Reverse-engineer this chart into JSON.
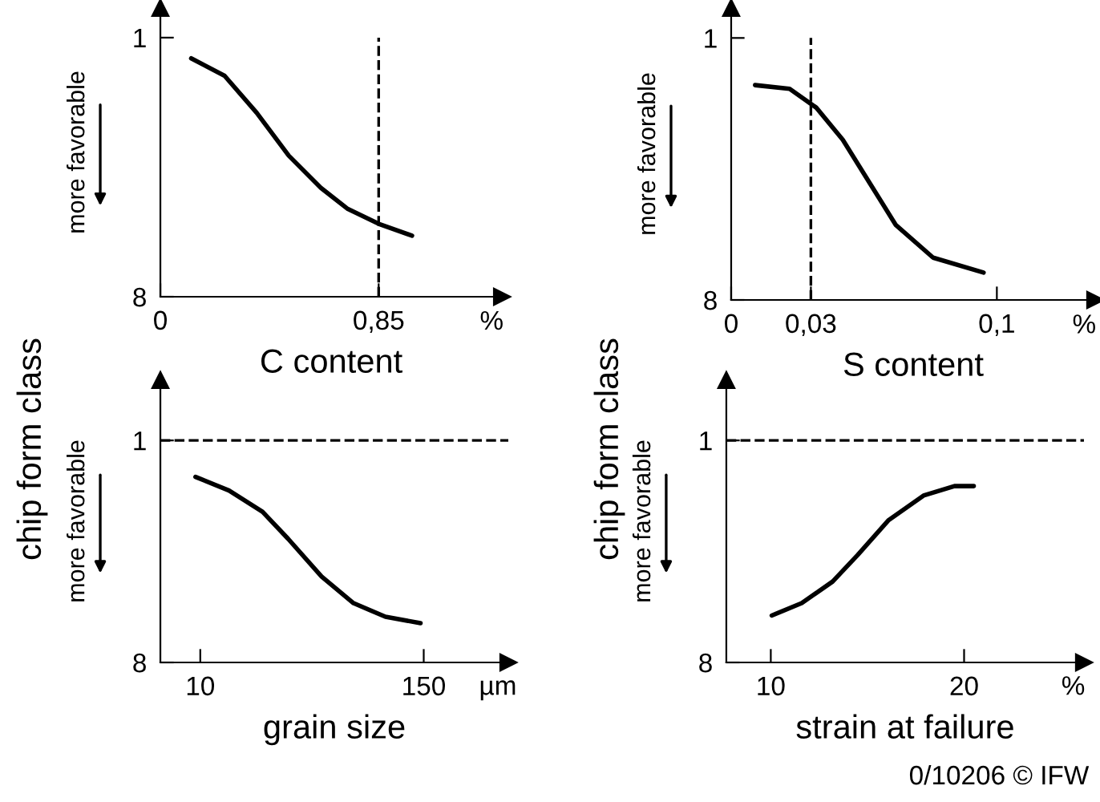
{
  "chart_data": [
    {
      "type": "line",
      "xlabel": "C content",
      "ylabel": "chip form class",
      "xlim": [
        0,
        1.33
      ],
      "ylim": [
        8,
        0.2
      ],
      "xticks": [
        0,
        {
          "value": 0.85,
          "label": "0,85"
        }
      ],
      "yticks": [
        1,
        8
      ],
      "series": [
        {
          "color": "#000000",
          "x": [
            0.12,
            0.25,
            0.375,
            0.5,
            0.625,
            0.73,
            0.85,
            0.98
          ],
          "values": [
            1.56,
            2.03,
            3.03,
            4.19,
            5.06,
            5.63,
            6.03,
            6.35
          ]
        }
      ],
      "ref_lines": [
        {
          "axis": "x",
          "value": 0.85,
          "line_style": "dashed",
          "color": "#000000"
        }
      ],
      "annotations": [
        "%",
        "more favorable"
      ]
    },
    {
      "type": "line",
      "xlabel": "S content",
      "ylabel": "chip form class",
      "xlim": [
        0,
        0.137
      ],
      "ylim": [
        8,
        0.2
      ],
      "xticks": [
        0,
        {
          "value": 0.03,
          "label": "0,03"
        },
        {
          "value": 0.1,
          "label": "0,1"
        }
      ],
      "yticks": [
        1,
        8
      ],
      "series": [
        {
          "color": "#000000",
          "x": [
            0.009,
            0.022,
            0.032,
            0.042,
            0.052,
            0.062,
            0.076,
            0.095
          ],
          "values": [
            2.26,
            2.36,
            2.86,
            3.72,
            4.86,
            6.0,
            6.87,
            7.27
          ]
        }
      ],
      "ref_lines": [
        {
          "axis": "x",
          "value": 0.03,
          "line_style": "dashed",
          "color": "#000000"
        }
      ],
      "annotations": [
        "%",
        "more favorable"
      ]
    },
    {
      "type": "line",
      "xlabel": "grain size",
      "xlim": [
        -15,
        203
      ],
      "ylim": [
        8,
        -0.9
      ],
      "xticks": [
        10,
        150
      ],
      "yticks": [
        1,
        8
      ],
      "series": [
        {
          "color": "#000000",
          "x": [
            7,
            28,
            49,
            65,
            86,
            106,
            126,
            148
          ],
          "values": [
            2.15,
            2.58,
            3.25,
            4.1,
            5.29,
            6.13,
            6.56,
            6.76
          ]
        }
      ],
      "ref_lines": [
        {
          "axis": "y",
          "value": 1,
          "line_style": "dashed",
          "color": "#000000"
        }
      ],
      "annotations": [
        "µm",
        "more favorable"
      ]
    },
    {
      "type": "line",
      "xlabel": "strain at failure",
      "xlim": [
        7.7,
        26.2
      ],
      "ylim": [
        8,
        -0.9
      ],
      "xticks": [
        10,
        20
      ],
      "yticks": [
        1,
        8
      ],
      "series": [
        {
          "color": "#000000",
          "x": [
            10.05,
            11.6,
            13.2,
            14.5,
            16.1,
            17.9,
            19.5,
            20.5
          ],
          "values": [
            6.52,
            6.13,
            5.45,
            4.61,
            3.51,
            2.74,
            2.44,
            2.44
          ]
        }
      ],
      "ref_lines": [
        {
          "axis": "y",
          "value": 1,
          "line_style": "dashed",
          "color": "#000000"
        }
      ],
      "annotations": [
        "%",
        "more favorable",
        "0/10206 © IFW"
      ]
    }
  ]
}
